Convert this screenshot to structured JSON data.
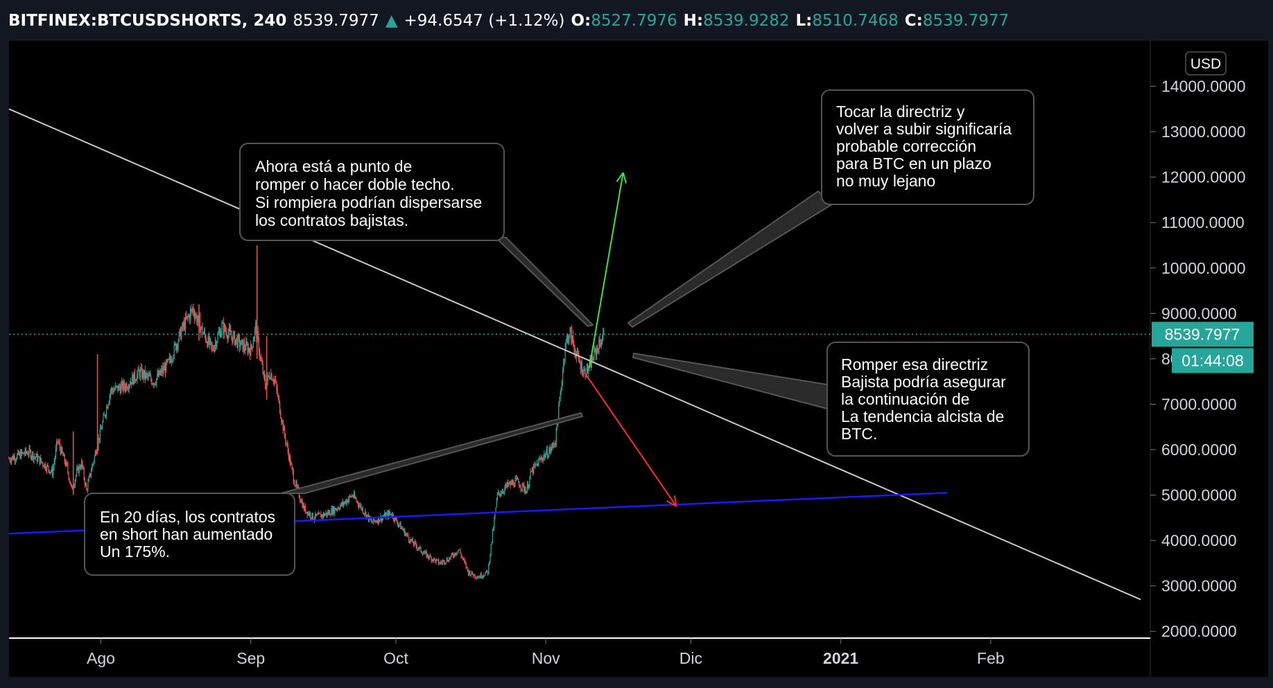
{
  "header": {
    "symbol": "BITFINEX:BTCUSDSHORTS, 240",
    "last": "8539.7977",
    "change": "+94.6547 (+1.12%)",
    "o_label": "O:",
    "o_value": "8527.7976",
    "h_label": "H:",
    "h_value": "8539.9282",
    "l_label": "L:",
    "l_value": "8510.7468",
    "c_label": "C:",
    "c_value": "8539.7977",
    "up_icon": "triangle-up-icon"
  },
  "colors": {
    "background": "#131722",
    "plot": "#000000",
    "up": "#26a69a",
    "down": "#ef5350",
    "trendline": "#c8c8c8",
    "support": "#1a1aff",
    "arrow_up": "#3ce63c",
    "arrow_down": "#ff2a2a"
  },
  "chart_data": {
    "type": "candlestick",
    "currency_badge": "USD",
    "y_ticks": [
      {
        "value": 14000,
        "label": "14000.0000"
      },
      {
        "value": 13000,
        "label": "13000.0000"
      },
      {
        "value": 12000,
        "label": "12000.0000"
      },
      {
        "value": 11000,
        "label": "11000.0000"
      },
      {
        "value": 10000,
        "label": "10000.0000"
      },
      {
        "value": 9000,
        "label": "9000.0000"
      },
      {
        "value": 8000,
        "label": "8000.0000"
      },
      {
        "value": 7000,
        "label": "7000.0000"
      },
      {
        "value": 6000,
        "label": "6000.0000"
      },
      {
        "value": 5000,
        "label": "5000.0000"
      },
      {
        "value": 4000,
        "label": "4000.0000"
      },
      {
        "value": 3000,
        "label": "3000.0000"
      },
      {
        "value": 2000,
        "label": "2000.0000"
      }
    ],
    "ylim": [
      1850,
      15000
    ],
    "x_ticks": [
      {
        "date": "2020-08-01",
        "label": "Ago"
      },
      {
        "date": "2020-09-01",
        "label": "Sep"
      },
      {
        "date": "2020-10-01",
        "label": "Oct"
      },
      {
        "date": "2020-11-01",
        "label": "Nov"
      },
      {
        "date": "2020-12-01",
        "label": "Dic"
      },
      {
        "date": "2021-01-01",
        "label": "2021",
        "bold": true
      },
      {
        "date": "2021-02-01",
        "label": "Feb"
      }
    ],
    "xlim": [
      "2020-07-13",
      "2021-03-06"
    ],
    "last_price": {
      "value": 8539.7977,
      "label": "8539.7977",
      "countdown": "01:44:08"
    },
    "price_path": [
      {
        "date": "2020-07-13",
        "value": 5800
      },
      {
        "date": "2020-07-17",
        "value": 5950
      },
      {
        "date": "2020-07-19",
        "value": 5800
      },
      {
        "date": "2020-07-22",
        "value": 5500
      },
      {
        "date": "2020-07-23",
        "value": 6200
      },
      {
        "date": "2020-07-25",
        "value": 5600
      },
      {
        "date": "2020-07-26",
        "value": 5100
      },
      {
        "date": "2020-07-27",
        "value": 5500
      },
      {
        "date": "2020-07-28",
        "value": 5700
      },
      {
        "date": "2020-07-29",
        "value": 5100
      },
      {
        "date": "2020-07-31",
        "value": 6000
      },
      {
        "date": "2020-08-03",
        "value": 7300
      },
      {
        "date": "2020-08-06",
        "value": 7400
      },
      {
        "date": "2020-08-09",
        "value": 7700
      },
      {
        "date": "2020-08-12",
        "value": 7500
      },
      {
        "date": "2020-08-15",
        "value": 7900
      },
      {
        "date": "2020-08-18",
        "value": 8700
      },
      {
        "date": "2020-08-20",
        "value": 9100
      },
      {
        "date": "2020-08-22",
        "value": 8600
      },
      {
        "date": "2020-08-24",
        "value": 8200
      },
      {
        "date": "2020-08-26",
        "value": 8700
      },
      {
        "date": "2020-08-28",
        "value": 8500
      },
      {
        "date": "2020-08-30",
        "value": 8300
      },
      {
        "date": "2020-09-01",
        "value": 8200
      },
      {
        "date": "2020-09-02",
        "value": 8700
      },
      {
        "date": "2020-09-03",
        "value": 8000
      },
      {
        "date": "2020-09-04",
        "value": 7400
      },
      {
        "date": "2020-09-05",
        "value": 7700
      },
      {
        "date": "2020-09-06",
        "value": 7500
      },
      {
        "date": "2020-09-08",
        "value": 6300
      },
      {
        "date": "2020-09-10",
        "value": 5300
      },
      {
        "date": "2020-09-12",
        "value": 4700
      },
      {
        "date": "2020-09-14",
        "value": 4500
      },
      {
        "date": "2020-09-17",
        "value": 4600
      },
      {
        "date": "2020-09-20",
        "value": 4800
      },
      {
        "date": "2020-09-22",
        "value": 5000
      },
      {
        "date": "2020-09-24",
        "value": 4700
      },
      {
        "date": "2020-09-26",
        "value": 4400
      },
      {
        "date": "2020-09-28",
        "value": 4500
      },
      {
        "date": "2020-09-30",
        "value": 4600
      },
      {
        "date": "2020-10-02",
        "value": 4300
      },
      {
        "date": "2020-10-04",
        "value": 4000
      },
      {
        "date": "2020-10-07",
        "value": 3700
      },
      {
        "date": "2020-10-10",
        "value": 3500
      },
      {
        "date": "2020-10-12",
        "value": 3600
      },
      {
        "date": "2020-10-14",
        "value": 3800
      },
      {
        "date": "2020-10-16",
        "value": 3300
      },
      {
        "date": "2020-10-18",
        "value": 3200
      },
      {
        "date": "2020-10-20",
        "value": 3300
      },
      {
        "date": "2020-10-22",
        "value": 5000
      },
      {
        "date": "2020-10-24",
        "value": 5200
      },
      {
        "date": "2020-10-26",
        "value": 5300
      },
      {
        "date": "2020-10-28",
        "value": 5100
      },
      {
        "date": "2020-10-29",
        "value": 5500
      },
      {
        "date": "2020-10-31",
        "value": 5800
      },
      {
        "date": "2020-11-02",
        "value": 6000
      },
      {
        "date": "2020-11-03",
        "value": 6200
      },
      {
        "date": "2020-11-04",
        "value": 7200
      },
      {
        "date": "2020-11-05",
        "value": 8300
      },
      {
        "date": "2020-11-06",
        "value": 8600
      },
      {
        "date": "2020-11-07",
        "value": 8200
      },
      {
        "date": "2020-11-08",
        "value": 7900
      },
      {
        "date": "2020-11-09",
        "value": 7700
      },
      {
        "date": "2020-11-10",
        "value": 7800
      },
      {
        "date": "2020-11-11",
        "value": 8100
      },
      {
        "date": "2020-11-12",
        "value": 8300
      },
      {
        "date": "2020-11-13",
        "value": 8540
      }
    ],
    "wicks": [
      {
        "date": "2020-07-26",
        "high": 6400,
        "low": 5000
      },
      {
        "date": "2020-07-31",
        "high": 8100,
        "low": 5900
      },
      {
        "date": "2020-08-21",
        "high": 9200,
        "low": 8400
      },
      {
        "date": "2020-09-02",
        "high": 10500,
        "low": 8000
      },
      {
        "date": "2020-09-04",
        "high": 8500,
        "low": 7100
      },
      {
        "date": "2020-11-06",
        "high": 8700,
        "low": 8300
      }
    ],
    "trendline": [
      {
        "date": "2020-07-13",
        "value": 13500
      },
      {
        "date": "2021-03-04",
        "value": 2700
      }
    ],
    "support_line": [
      {
        "date": "2020-07-13",
        "value": 4150
      },
      {
        "date": "2021-01-23",
        "value": 5050
      }
    ],
    "arrow_up": [
      {
        "date": "2020-11-10",
        "value": 7800
      },
      {
        "date": "2020-11-17",
        "value": 12100
      }
    ],
    "arrow_down": [
      {
        "date": "2020-11-09",
        "value": 7700
      },
      {
        "date": "2020-11-28",
        "value": 4750
      }
    ]
  },
  "annotations": [
    {
      "lines": [
        "Ahora  está  a punto  de",
        "romper o hacer doble techo.",
        "Si rompiera podrían dispersarse",
        "los contratos bajistas."
      ]
    },
    {
      "lines": [
        "Tocar la directriz  y",
        "volver a subir significaría",
        "probable  corrección",
        "para BTC en un plazo",
        "no muy lejano"
      ]
    },
    {
      "lines": [
        "Romper  esa directriz",
        "Bajista podría asegurar",
        "la continuación de",
        "La tendencia alcista  de",
        "BTC."
      ]
    },
    {
      "lines": [
        "En 20 días, los contratos",
        "en short han aumentado",
        "Un 175%."
      ]
    }
  ]
}
